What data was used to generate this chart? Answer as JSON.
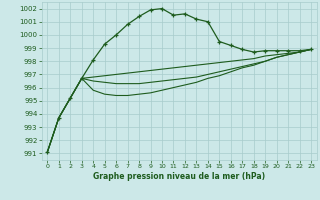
{
  "title": "Graphe pression niveau de la mer (hPa)",
  "xlim": [
    -0.5,
    23.5
  ],
  "ylim": [
    990.5,
    1002.5
  ],
  "yticks": [
    991,
    992,
    993,
    994,
    995,
    996,
    997,
    998,
    999,
    1000,
    1001,
    1002
  ],
  "xticks": [
    0,
    1,
    2,
    3,
    4,
    5,
    6,
    7,
    8,
    9,
    10,
    11,
    12,
    13,
    14,
    15,
    16,
    17,
    18,
    19,
    20,
    21,
    22,
    23
  ],
  "background_color": "#cce8e8",
  "grid_color": "#a8cccc",
  "line_color": "#1e5c1e",
  "series1": [
    991.1,
    993.7,
    995.2,
    996.7,
    998.1,
    999.3,
    1000.0,
    1000.8,
    1001.4,
    1001.9,
    1002.0,
    1001.5,
    1001.6,
    1001.2,
    1001.0,
    999.5,
    999.2,
    998.9,
    998.7,
    998.8,
    998.8,
    998.8,
    998.8,
    998.9
  ],
  "series2": [
    991.1,
    993.7,
    995.2,
    996.7,
    996.8,
    996.9,
    997.0,
    997.1,
    997.2,
    997.3,
    997.4,
    997.5,
    997.6,
    997.7,
    997.8,
    997.9,
    998.0,
    998.1,
    998.2,
    998.4,
    998.5,
    998.6,
    998.7,
    998.9
  ],
  "series3": [
    991.1,
    993.7,
    995.2,
    996.7,
    996.5,
    996.4,
    996.3,
    996.3,
    996.3,
    996.4,
    996.5,
    996.6,
    996.7,
    996.8,
    997.0,
    997.2,
    997.4,
    997.6,
    997.8,
    998.0,
    998.3,
    998.5,
    998.7,
    998.9
  ],
  "series4": [
    991.1,
    993.7,
    995.2,
    996.7,
    995.8,
    995.5,
    995.4,
    995.4,
    995.5,
    995.6,
    995.8,
    996.0,
    996.2,
    996.4,
    996.7,
    996.9,
    997.2,
    997.5,
    997.7,
    998.0,
    998.3,
    998.5,
    998.7,
    998.9
  ]
}
